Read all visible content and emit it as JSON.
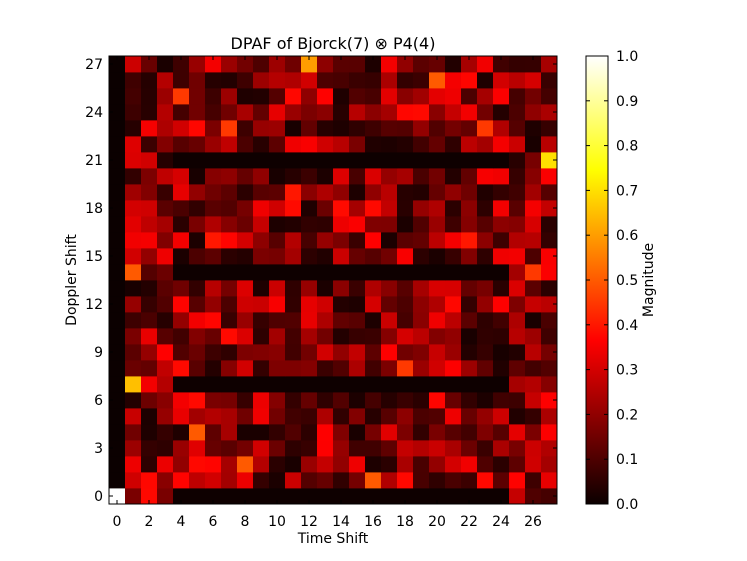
{
  "chart_data": {
    "type": "heatmap",
    "title_left": "DPAF of Bjorck(7) ",
    "title_symbol": "⊗",
    "title_right": " P4(4)",
    "xlabel": "Time Shift",
    "ylabel": "Doppler Shift",
    "x_ticks": [
      "0",
      "2",
      "4",
      "6",
      "8",
      "10",
      "12",
      "14",
      "16",
      "18",
      "20",
      "22",
      "24",
      "26"
    ],
    "y_ticks": [
      "0",
      "3",
      "6",
      "9",
      "12",
      "15",
      "18",
      "21",
      "24",
      "27"
    ],
    "colorbar_label": "Magnitude",
    "colorbar_ticks": [
      "0.0",
      "0.1",
      "0.2",
      "0.3",
      "0.4",
      "0.5",
      "0.6",
      "0.7",
      "0.8",
      "0.9",
      "1.0"
    ],
    "colormap": "hot",
    "xlim": [
      -0.5,
      27.5
    ],
    "ylim": [
      -0.5,
      27.5
    ],
    "vlim": [
      0,
      1
    ],
    "grid_size": 28,
    "zero_rows": [
      0,
      7,
      14,
      21
    ],
    "zero_cols": [
      0
    ],
    "notable_cells": [
      {
        "x": 0,
        "y": 0,
        "value": 1.0
      },
      {
        "x": 27,
        "y": 21,
        "value": 0.7
      },
      {
        "x": 1,
        "y": 7,
        "value": 0.65
      },
      {
        "x": 12,
        "y": 27,
        "value": 0.6
      },
      {
        "x": 16,
        "y": 1,
        "value": 0.5
      },
      {
        "x": 1,
        "y": 14,
        "value": 0.5
      },
      {
        "x": 8,
        "y": 2,
        "value": 0.5
      },
      {
        "x": 5,
        "y": 4,
        "value": 0.5
      },
      {
        "x": 20,
        "y": 26,
        "value": 0.5
      },
      {
        "x": 4,
        "y": 25,
        "value": 0.45
      },
      {
        "x": 26,
        "y": 14,
        "value": 0.45
      },
      {
        "x": 23,
        "y": 23,
        "value": 0.45
      },
      {
        "x": 7,
        "y": 23,
        "value": 0.45
      },
      {
        "x": 18,
        "y": 8,
        "value": 0.45
      },
      {
        "x": 6,
        "y": 16,
        "value": 0.4
      },
      {
        "x": 11,
        "y": 19,
        "value": 0.4
      },
      {
        "x": 22,
        "y": 16,
        "value": 0.4
      }
    ]
  }
}
